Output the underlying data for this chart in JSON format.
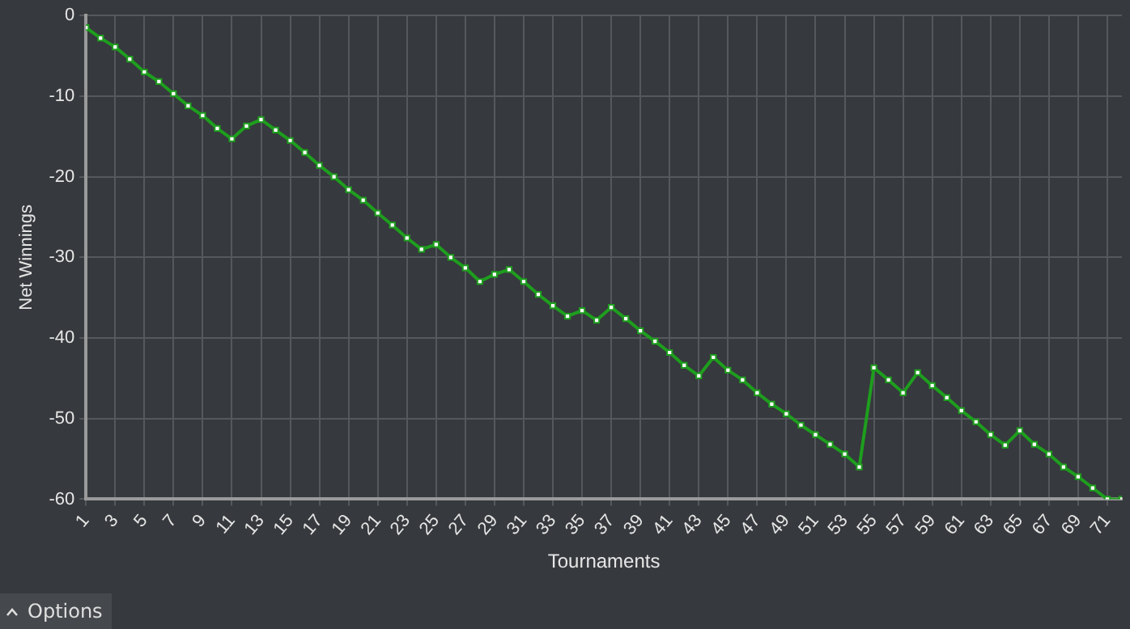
{
  "chart_data": {
    "type": "line",
    "xlabel": "Tournaments",
    "ylabel": "Net Winnings",
    "x": [
      1,
      2,
      3,
      4,
      5,
      6,
      7,
      8,
      9,
      10,
      11,
      12,
      13,
      14,
      15,
      16,
      17,
      18,
      19,
      20,
      21,
      22,
      23,
      24,
      25,
      26,
      27,
      28,
      29,
      30,
      31,
      32,
      33,
      34,
      35,
      36,
      37,
      38,
      39,
      40,
      41,
      42,
      43,
      44,
      45,
      46,
      47,
      48,
      49,
      50,
      51,
      52,
      53,
      54,
      55,
      56,
      57,
      58,
      59,
      60,
      61,
      62,
      63,
      64,
      65,
      66,
      67,
      68,
      69,
      70,
      71,
      72
    ],
    "series": [
      {
        "color": "#1e9e1e",
        "values": [
          -1.5,
          -2.8,
          -3.9,
          -5.4,
          -7,
          -8.2,
          -9.7,
          -11.2,
          -12.4,
          -14,
          -15.3,
          -13.7,
          -12.9,
          -14.2,
          -15.5,
          -17,
          -18.6,
          -20,
          -21.6,
          -22.9,
          -24.5,
          -26,
          -27.6,
          -29,
          -28.4,
          -30,
          -31.3,
          -33,
          -32.1,
          -31.5,
          -33,
          -34.6,
          -36,
          -37.3,
          -36.6,
          -37.8,
          -36.2,
          -37.6,
          -39.1,
          -40.4,
          -41.8,
          -43.4,
          -44.7,
          -42.4,
          -44,
          -45.2,
          -46.8,
          -48.2,
          -49.4,
          -50.8,
          -52,
          -53.2,
          -54.4,
          -56,
          -43.7,
          -45.2,
          -46.8,
          -44.3,
          -45.9,
          -47.4,
          -49,
          -50.4,
          -52,
          -53.3,
          -51.5,
          -53.2,
          -54.4,
          -56,
          -57.2,
          -58.6,
          -60,
          -60
        ]
      }
    ],
    "xlim": [
      1,
      72
    ],
    "xticks": [
      1,
      3,
      5,
      7,
      9,
      11,
      13,
      15,
      17,
      19,
      21,
      23,
      25,
      27,
      29,
      31,
      33,
      35,
      37,
      39,
      41,
      43,
      45,
      47,
      49,
      51,
      53,
      55,
      57,
      59,
      61,
      63,
      65,
      67,
      69,
      71
    ],
    "ylim": [
      -60,
      0
    ],
    "yticks": [
      -60,
      -50,
      -40,
      -30,
      -20,
      -10,
      0
    ],
    "grid": true,
    "marker": "square",
    "line_style": "solid",
    "annotations": [
      "Options"
    ]
  }
}
